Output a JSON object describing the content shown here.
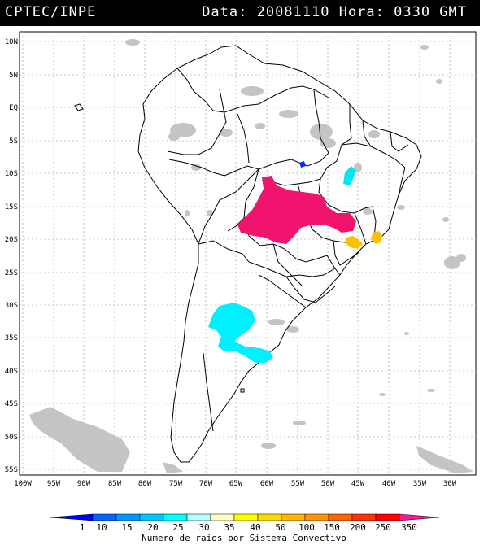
{
  "header": {
    "left": "CPTEC/INPE",
    "right": "Data: 20081110 Hora: 0330 GMT"
  },
  "map": {
    "lat_labels": [
      "10N",
      "5N",
      "EQ",
      "5S",
      "10S",
      "15S",
      "20S",
      "25S",
      "30S",
      "35S",
      "40S",
      "45S",
      "50S",
      "55S"
    ],
    "lon_labels": [
      "100W",
      "95W",
      "90W",
      "85W",
      "80W",
      "75W",
      "70W",
      "65W",
      "60W",
      "55W",
      "50W",
      "45W",
      "40W",
      "35W",
      "30W"
    ],
    "extent": {
      "lon": [
        -100,
        -26
      ],
      "lat": [
        -56,
        11
      ]
    }
  },
  "legend": {
    "title": "Numero de raios por Sistema Convectivo",
    "labels": [
      "1",
      "10",
      "15",
      "20",
      "25",
      "30",
      "35",
      "40",
      "50",
      "100",
      "150",
      "200",
      "250",
      "350"
    ],
    "colors": [
      "#0000ff",
      "#0064ff",
      "#0096ff",
      "#00c8ff",
      "#00ffff",
      "#b4ffff",
      "#ffffc8",
      "#ffff00",
      "#ffdc00",
      "#ffb400",
      "#ff9600",
      "#ff6400",
      "#ff3200",
      "#ff0000",
      "#ff1493"
    ]
  },
  "systems": [
    {
      "name": "central-brazil",
      "color": "#f0146e"
    },
    {
      "name": "argentina",
      "color": "#00f0ff"
    },
    {
      "name": "southeast-brazil-1",
      "color": "#ffc000"
    },
    {
      "name": "southeast-brazil-2",
      "color": "#ffc000"
    },
    {
      "name": "tocantins",
      "color": "#00e8f0"
    },
    {
      "name": "para",
      "color": "#0030ff"
    }
  ]
}
